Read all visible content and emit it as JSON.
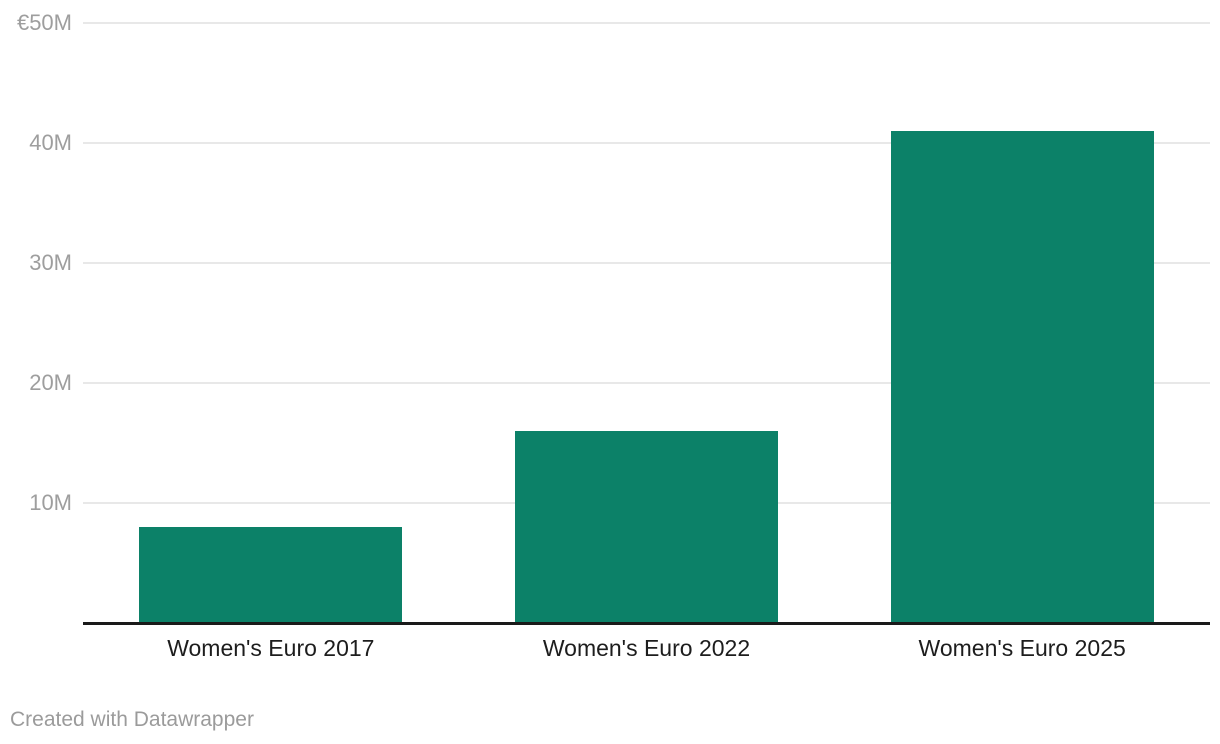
{
  "chart_data": {
    "type": "bar",
    "title": "",
    "categories": [
      "Women's Euro 2017",
      "Women's Euro 2022",
      "Women's Euro 2025"
    ],
    "values": [
      8,
      16,
      41
    ],
    "value_unit": "millions of euros",
    "ylim": [
      0,
      50
    ],
    "yticks": [
      {
        "value": 50,
        "label": "€50M"
      },
      {
        "value": 40,
        "label": "40M"
      },
      {
        "value": 30,
        "label": "30M"
      },
      {
        "value": 20,
        "label": "20M"
      },
      {
        "value": 10,
        "label": "10M"
      }
    ],
    "grid": true,
    "legend": "none",
    "xlabel": "",
    "ylabel": ""
  },
  "colors": {
    "bar": "#0c8168",
    "grid": "#e8e8e8",
    "axis_line": "#1a1a1a",
    "tick_label": "#9e9e9e",
    "category_label": "#1d1d1d",
    "attribution_text": "#9b9b9b"
  },
  "footer": {
    "attribution": "Created with Datawrapper"
  }
}
